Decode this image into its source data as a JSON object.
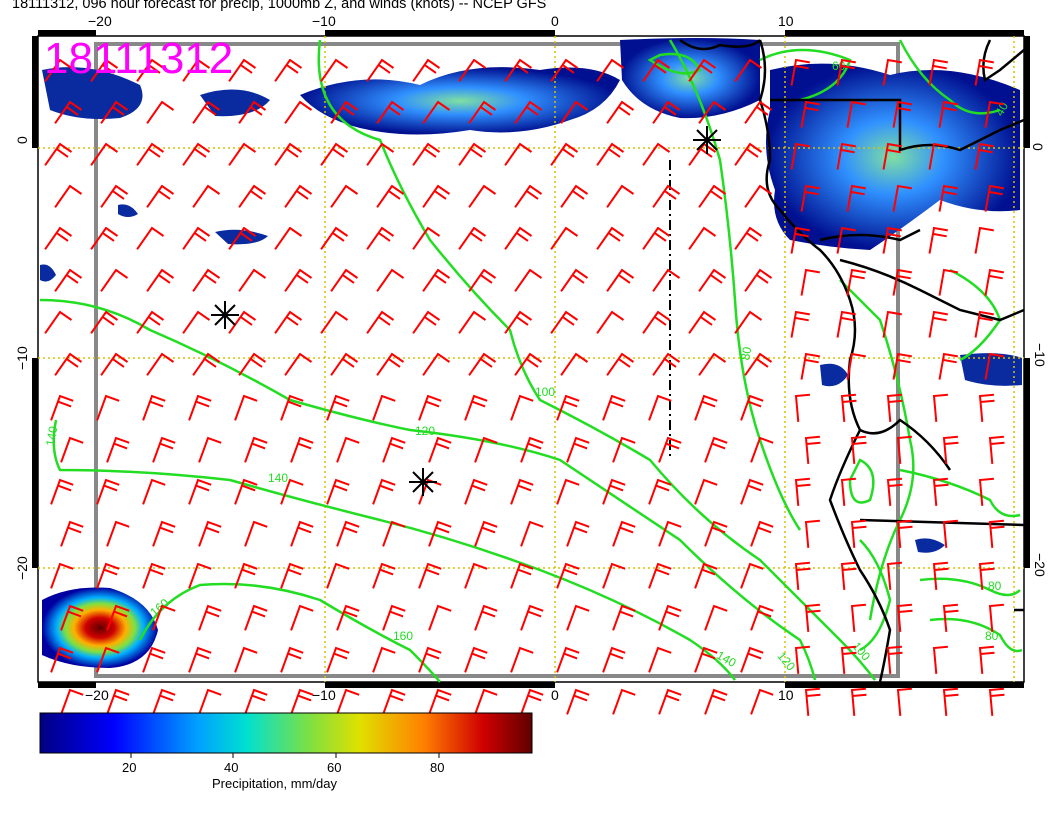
{
  "title": "18111312, 096 hour forecast for precip, 1000mb Z, and winds (knots) -- NCEP GFS",
  "stamp": "18111312",
  "axes": {
    "lon_ticks": [
      "−20",
      "−10",
      "0",
      "10"
    ],
    "lat_ticks": [
      "0",
      "−10",
      "−20"
    ],
    "lat_ticks_right": [
      "0",
      "−10",
      "−20"
    ]
  },
  "contour_labels": [
    {
      "id": "c140a",
      "text": "140"
    },
    {
      "id": "c140b",
      "text": "140"
    },
    {
      "id": "c120a",
      "text": "120"
    },
    {
      "id": "c100a",
      "text": "100"
    },
    {
      "id": "c160a",
      "text": "160"
    },
    {
      "id": "c160b",
      "text": "160"
    },
    {
      "id": "c140c",
      "text": "140"
    },
    {
      "id": "c120b",
      "text": "120"
    },
    {
      "id": "c100b",
      "text": "100"
    },
    {
      "id": "c80a",
      "text": "80"
    },
    {
      "id": "c80b",
      "text": "80"
    },
    {
      "id": "c80c",
      "text": "80"
    },
    {
      "id": "c60a",
      "text": "60"
    },
    {
      "id": "c40a",
      "text": "40"
    }
  ],
  "colorbar": {
    "ticks": [
      "20",
      "40",
      "60",
      "80"
    ],
    "label": "Precipitation, mm/day"
  },
  "colors": {
    "wind": "#ff0000",
    "contour": "#22dd22",
    "grid": "#d8c000",
    "coast": "#000000",
    "stamp": "#ff00ff",
    "frame": "#888888"
  }
}
